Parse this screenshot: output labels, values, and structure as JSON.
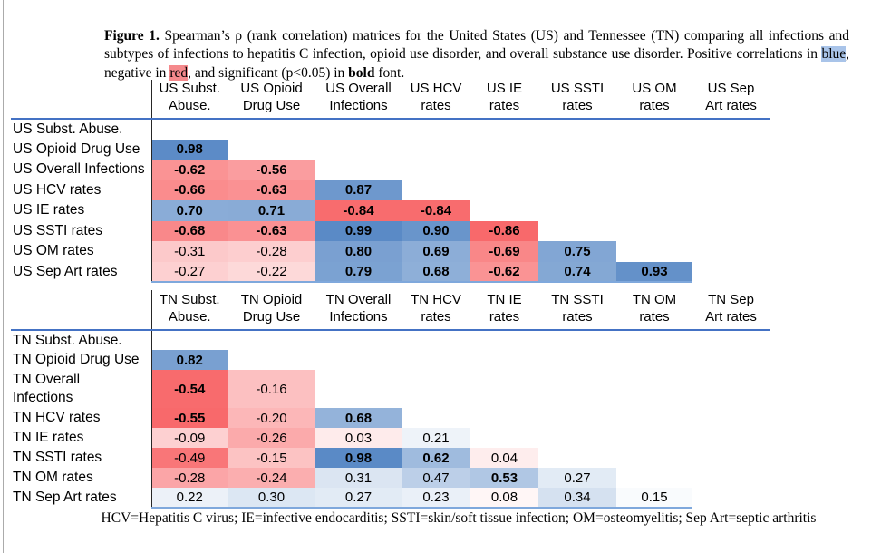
{
  "colors": {
    "header_rule": "#4472C4",
    "bottom_rule": "#7FA8DC",
    "divider": "#262626",
    "scale_blue": "#5A8AC6",
    "scale_red": "#F8696B",
    "scale_white": "#FFFFFF",
    "caption_highlight_blue": "#A9C4E9",
    "caption_highlight_red": "#F5898C"
  },
  "caption": {
    "segments": [
      {
        "t": "Figure 1.",
        "style": "bold"
      },
      {
        "t": " Spearman’s ρ (rank correlation) matrices for the United States (US) and Tennessee (TN) comparing all infections and subtypes of infections to hepatitis C infection, opioid use disorder, and overall substance use disorder. Positive correlations in ",
        "style": "normal"
      },
      {
        "t": "blue",
        "style": "hl-blue"
      },
      {
        "t": ", negative in ",
        "style": "normal"
      },
      {
        "t": "red",
        "style": "hl-red"
      },
      {
        "t": ", and significant (p<0.05) in ",
        "style": "normal"
      },
      {
        "t": "bold",
        "style": "bold"
      },
      {
        "t": " font.",
        "style": "normal"
      }
    ]
  },
  "footer": {
    "text": "HCV=Hepatitis C virus; IE=infective endocarditis; SSTI=skin/soft tissue infection; OM=osteomyelitis; Sep Art=septic arthritis"
  },
  "chart_data": [
    {
      "type": "heatmap",
      "name": "us-matrix",
      "title": "US Spearman rank correlation matrix (lower triangle); bold = significant p<0.05",
      "color_midpoint": 0,
      "col_header_lines": [
        [
          "US Subst.",
          "Abuse."
        ],
        [
          "US Opioid",
          "Drug Use"
        ],
        [
          "US Overall",
          "Infections"
        ],
        [
          "US HCV",
          "rates"
        ],
        [
          "US IE rates"
        ],
        [
          "US SSTI",
          "rates"
        ],
        [
          "US OM",
          "rates"
        ],
        [
          "US Sep",
          "Art rates"
        ]
      ],
      "row_label_lines": [
        [
          "US Subst. Abuse."
        ],
        [
          "US Opioid Drug Use"
        ],
        [
          "US Overall Infections"
        ],
        [
          "US HCV rates"
        ],
        [
          "US IE rates"
        ],
        [
          "US SSTI rates"
        ],
        [
          "US OM rates"
        ],
        [
          "US Sep Art rates"
        ]
      ],
      "cells": [
        [],
        [
          {
            "v": 0.98,
            "b": true
          }
        ],
        [
          {
            "v": -0.62,
            "b": true
          },
          {
            "v": -0.56,
            "b": true
          }
        ],
        [
          {
            "v": -0.66,
            "b": true
          },
          {
            "v": -0.63,
            "b": true
          },
          {
            "v": 0.87,
            "b": true
          }
        ],
        [
          {
            "v": 0.7,
            "b": true
          },
          {
            "v": 0.71,
            "b": true
          },
          {
            "v": -0.84,
            "b": true
          },
          {
            "v": -0.84,
            "b": true
          }
        ],
        [
          {
            "v": -0.68,
            "b": true
          },
          {
            "v": -0.63,
            "b": true
          },
          {
            "v": 0.99,
            "b": true
          },
          {
            "v": 0.9,
            "b": true
          },
          {
            "v": -0.86,
            "b": true
          }
        ],
        [
          {
            "v": -0.31,
            "b": false
          },
          {
            "v": -0.28,
            "b": false
          },
          {
            "v": 0.8,
            "b": true
          },
          {
            "v": 0.69,
            "b": true
          },
          {
            "v": -0.69,
            "b": true
          },
          {
            "v": 0.75,
            "b": true
          }
        ],
        [
          {
            "v": -0.27,
            "b": false
          },
          {
            "v": -0.22,
            "b": false
          },
          {
            "v": 0.79,
            "b": true
          },
          {
            "v": 0.68,
            "b": true
          },
          {
            "v": -0.62,
            "b": true
          },
          {
            "v": 0.74,
            "b": true
          },
          {
            "v": 0.93,
            "b": true
          }
        ]
      ]
    },
    {
      "type": "heatmap",
      "name": "tn-matrix",
      "title": "TN Spearman rank correlation matrix (lower triangle); bold = significant p<0.05",
      "color_midpoint": 0.12,
      "col_header_lines": [
        [
          "TN Subst.",
          "Abuse."
        ],
        [
          "TN Opioid",
          "Drug Use"
        ],
        [
          "TN Overall",
          "Infections"
        ],
        [
          "TN HCV",
          "rates"
        ],
        [
          "TN IE",
          "rates"
        ],
        [
          "TN SSTI",
          "rates"
        ],
        [
          "TN OM",
          "rates"
        ],
        [
          "TN Sep",
          "Art rates"
        ]
      ],
      "row_label_lines": [
        [
          "TN Subst. Abuse."
        ],
        [
          "TN Opioid Drug Use"
        ],
        [
          "TN Overall",
          "Infections"
        ],
        [
          "TN HCV rates"
        ],
        [
          "TN IE rates"
        ],
        [
          "TN SSTI rates"
        ],
        [
          "TN OM rates"
        ],
        [
          "TN Sep Art rates"
        ]
      ],
      "cells": [
        [],
        [
          {
            "v": 0.82,
            "b": true
          }
        ],
        [
          {
            "v": -0.54,
            "b": true
          },
          {
            "v": -0.16,
            "b": false
          }
        ],
        [
          {
            "v": -0.55,
            "b": true
          },
          {
            "v": -0.2,
            "b": false
          },
          {
            "v": 0.68,
            "b": true
          }
        ],
        [
          {
            "v": -0.09,
            "b": false
          },
          {
            "v": -0.26,
            "b": false
          },
          {
            "v": 0.03,
            "b": false
          },
          {
            "v": 0.21,
            "b": false
          }
        ],
        [
          {
            "v": -0.49,
            "b": false
          },
          {
            "v": -0.15,
            "b": false
          },
          {
            "v": 0.98,
            "b": true
          },
          {
            "v": 0.62,
            "b": true
          },
          {
            "v": 0.04,
            "b": false
          }
        ],
        [
          {
            "v": -0.28,
            "b": false
          },
          {
            "v": -0.24,
            "b": false
          },
          {
            "v": 0.31,
            "b": false
          },
          {
            "v": 0.47,
            "b": false
          },
          {
            "v": 0.53,
            "b": true
          },
          {
            "v": 0.27,
            "b": false
          }
        ],
        [
          {
            "v": 0.22,
            "b": false
          },
          {
            "v": 0.3,
            "b": false
          },
          {
            "v": 0.27,
            "b": false
          },
          {
            "v": 0.23,
            "b": false
          },
          {
            "v": 0.08,
            "b": false
          },
          {
            "v": 0.34,
            "b": false
          },
          {
            "v": 0.15,
            "b": false
          }
        ]
      ]
    }
  ]
}
